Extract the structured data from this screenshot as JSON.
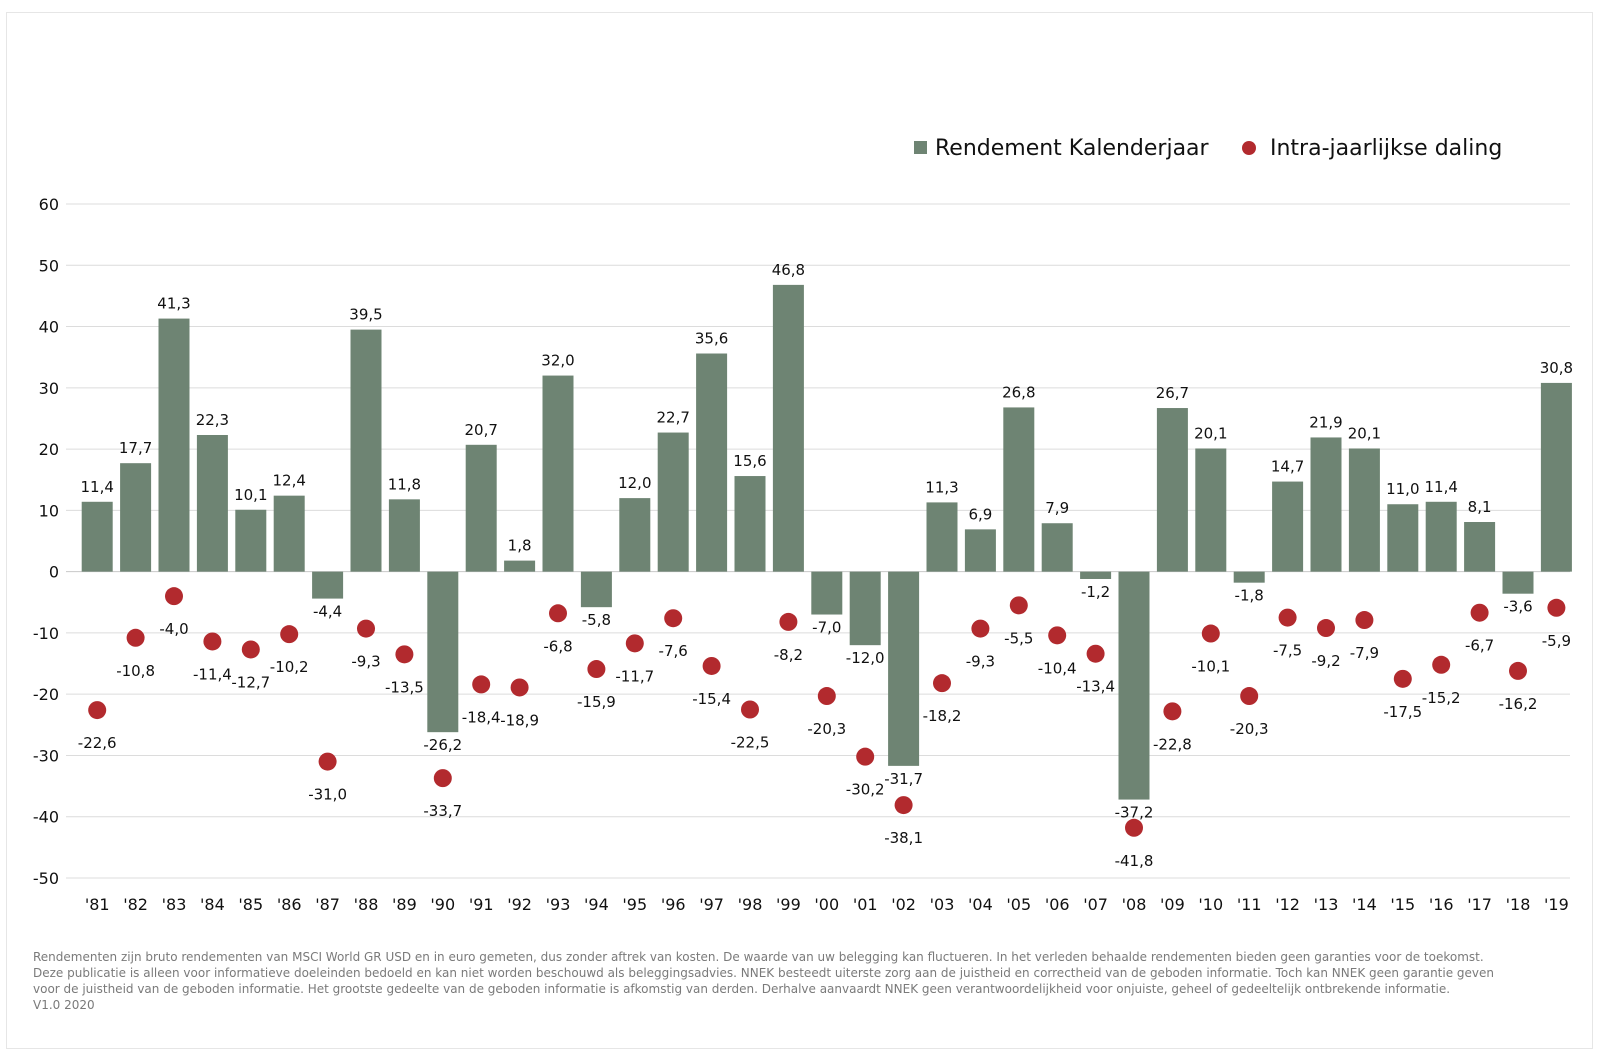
{
  "chart_data": {
    "type": "bar",
    "title": "",
    "xlabel": "",
    "ylabel": "",
    "ylim": [
      -50,
      60
    ],
    "yticks": [
      60,
      50,
      40,
      30,
      20,
      10,
      0,
      -10,
      -20,
      -30,
      -40,
      -50
    ],
    "grid": true,
    "legend_position": "top-right",
    "categories": [
      "'81",
      "'82",
      "'83",
      "'84",
      "'85",
      "'86",
      "'87",
      "'88",
      "'89",
      "'90",
      "'91",
      "'92",
      "'93",
      "'94",
      "'95",
      "'96",
      "'97",
      "'98",
      "'99",
      "'00",
      "'01",
      "'02",
      "'03",
      "'04",
      "'05",
      "'06",
      "'07",
      "'08",
      "'09",
      "'10",
      "'11",
      "'12",
      "'13",
      "'14",
      "'15",
      "'16",
      "'17",
      "'18",
      "'19"
    ],
    "series": [
      {
        "name": "Rendement Kalenderjaar",
        "kind": "bar",
        "color": "#6e8473",
        "values": [
          11.4,
          17.7,
          41.3,
          22.3,
          10.1,
          12.4,
          -4.4,
          39.5,
          11.8,
          -26.2,
          20.7,
          1.8,
          32.0,
          -5.8,
          12.0,
          22.7,
          35.6,
          15.6,
          46.8,
          -7.0,
          -12.0,
          -31.7,
          11.3,
          6.9,
          26.8,
          7.9,
          -1.2,
          -37.2,
          26.7,
          20.1,
          -1.8,
          14.7,
          21.9,
          20.1,
          11.0,
          11.4,
          8.1,
          -3.6,
          30.8
        ],
        "labels": [
          "11,4",
          "17,7",
          "41,3",
          "22,3",
          "10,1",
          "12,4",
          "-4,4",
          "39,5",
          "11,8",
          "-26,2",
          "20,7",
          "1,8",
          "32,0",
          "-5,8",
          "12,0",
          "22,7",
          "35,6",
          "15,6",
          "46,8",
          "-7,0",
          "-12,0",
          "-31,7",
          "11,3",
          "6,9",
          "26,8",
          "7,9",
          "-1,2",
          "-37,2",
          "26,7",
          "20,1",
          "-1,8",
          "14,7",
          "21,9",
          "20,1",
          "11,0",
          "11,4",
          "8,1",
          "-3,6",
          "30,8"
        ]
      },
      {
        "name": "Intra-jaarlijkse daling",
        "kind": "scatter",
        "color": "#b22a2e",
        "values": [
          -22.6,
          -10.8,
          -4.0,
          -11.4,
          -12.7,
          -10.2,
          -31.0,
          -9.3,
          -13.5,
          -33.7,
          -18.4,
          -18.9,
          -6.8,
          -15.9,
          -11.7,
          -7.6,
          -15.4,
          -22.5,
          -8.2,
          -20.3,
          -30.2,
          -38.1,
          -18.2,
          -9.3,
          -5.5,
          -10.4,
          -13.4,
          -41.8,
          -22.8,
          -10.1,
          -20.3,
          -7.5,
          -9.2,
          -7.9,
          -17.5,
          -15.2,
          -6.7,
          -16.2,
          -5.9
        ],
        "labels": [
          "-22,6",
          "-10,8",
          "-4,0",
          "-11,4",
          "-12,7",
          "-10,2",
          "-31,0",
          "-9,3",
          "-13,5",
          "-33,7",
          "-18,4",
          "-18,9",
          "-6,8",
          "-15,9",
          "-11,7",
          "-7,6",
          "-15,4",
          "-22,5",
          "-8,2",
          "-20,3",
          "-30,2",
          "-38,1",
          "-18,2",
          "-9,3",
          "-5,5",
          "-10,4",
          "-13,4",
          "-41,8",
          "-22,8",
          "-10,1",
          "-20,3",
          "-7,5",
          "-9,2",
          "-7,9",
          "-17,5",
          "-15,2",
          "-6,7",
          "-16,2",
          "-5,9"
        ]
      }
    ]
  },
  "legend": {
    "bar_label": "Rendement Kalenderjaar",
    "dot_label": "Intra-jaarlijkse daling"
  },
  "disclaimer": {
    "line1": "Rendementen zijn bruto rendementen van MSCI World GR USD en in euro gemeten, dus zonder aftrek van kosten. De waarde van uw belegging kan fluctueren. In het verleden behaalde rendementen bieden geen garanties voor de toekomst.",
    "line2": "Deze publicatie is alleen voor informatieve doeleinden bedoeld en kan niet worden beschouwd als beleggingsadvies. NNEK besteedt uiterste zorg aan de juistheid en correctheid van de geboden informatie. Toch kan NNEK geen garantie geven",
    "line3": "voor de juistheid van de geboden informatie. Het grootste gedeelte van de geboden informatie is afkomstig van derden. Derhalve aanvaardt NNEK geen verantwoordelijkheid voor onjuiste, geheel of gedeeltelijk ontbrekende informatie.",
    "line4": "V1.0 2020"
  }
}
